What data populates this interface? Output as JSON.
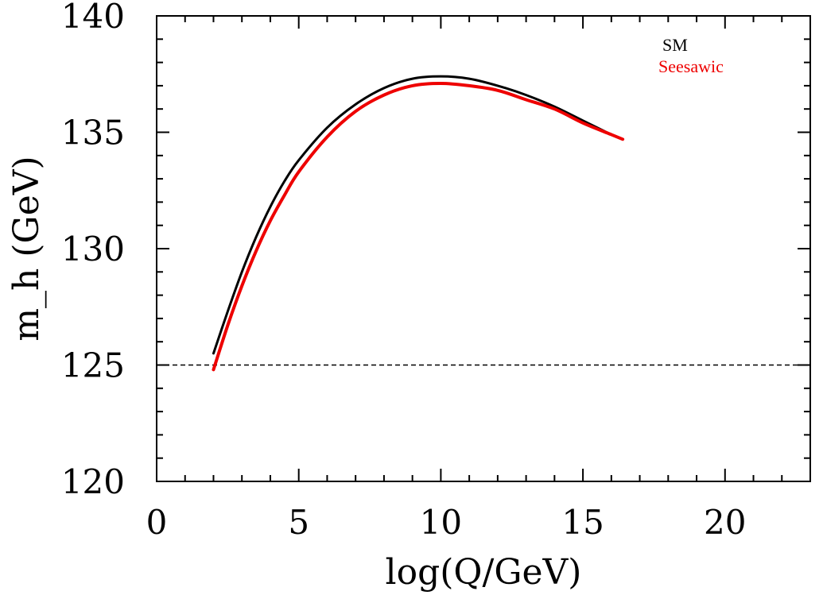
{
  "chart_data": {
    "type": "line",
    "title": "",
    "xlabel": "log(Q/GeV)",
    "ylabel": "m_h (GeV)",
    "xlim": [
      0,
      23
    ],
    "ylim": [
      120,
      140
    ],
    "xticks": [
      0,
      5,
      10,
      15,
      20
    ],
    "yticks": [
      120,
      125,
      130,
      135,
      140
    ],
    "x_minor_step": 1,
    "y_minor_step": 1,
    "grid": false,
    "legend_position": "top-right",
    "reference_lines": [
      {
        "orientation": "horizontal",
        "value": 125,
        "style": "dashed",
        "color": "#000000"
      }
    ],
    "series": [
      {
        "name": "SM",
        "color": "#000000",
        "x": [
          2.0,
          2.5,
          3.0,
          3.5,
          4.0,
          4.5,
          5.0,
          6.0,
          7.0,
          8.0,
          9.0,
          10.0,
          11.0,
          12.0,
          13.0,
          14.0,
          15.0,
          16.0,
          16.4
        ],
        "y": [
          125.5,
          127.3,
          129.0,
          130.5,
          131.8,
          132.9,
          133.8,
          135.2,
          136.2,
          136.9,
          137.3,
          137.4,
          137.3,
          137.0,
          136.6,
          136.1,
          135.5,
          134.9,
          134.7
        ]
      },
      {
        "name": "Seesawic",
        "color": "#ee0000",
        "x": [
          2.0,
          2.5,
          3.0,
          3.5,
          4.0,
          4.5,
          5.0,
          6.0,
          7.0,
          8.0,
          9.0,
          10.0,
          11.0,
          12.0,
          13.0,
          14.0,
          15.0,
          16.0,
          16.4
        ],
        "y": [
          124.8,
          126.7,
          128.4,
          129.9,
          131.2,
          132.3,
          133.3,
          134.8,
          135.9,
          136.6,
          137.0,
          137.1,
          137.0,
          136.8,
          136.4,
          136.0,
          135.4,
          134.9,
          134.7
        ]
      }
    ]
  }
}
